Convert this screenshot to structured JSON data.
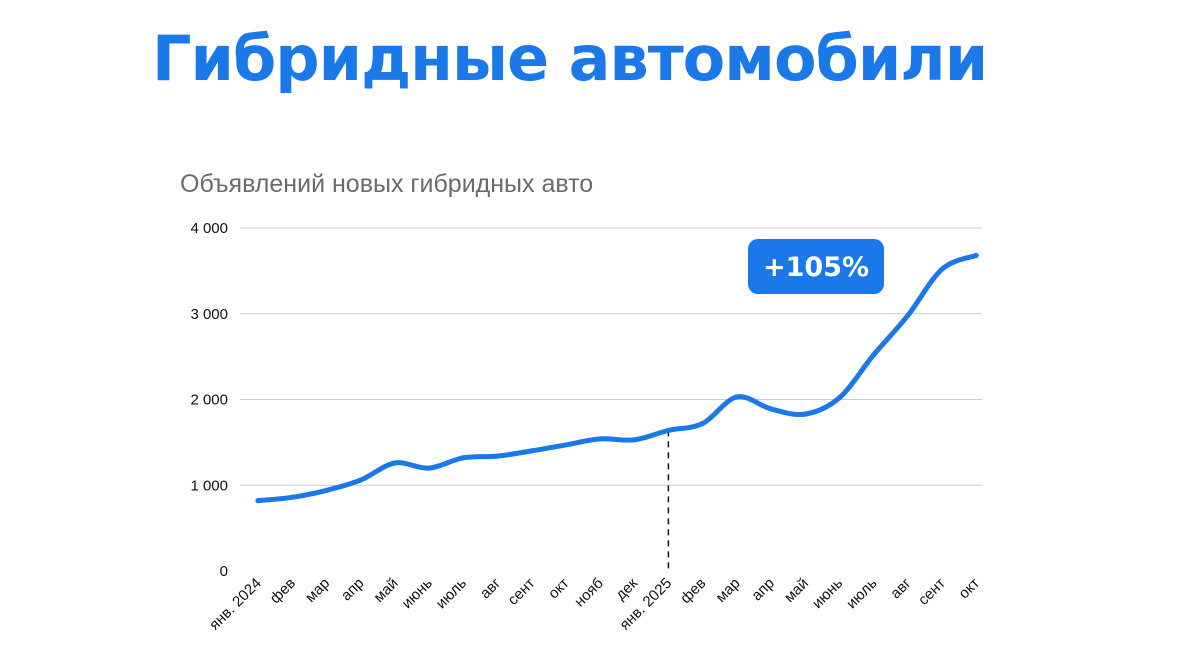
{
  "page_title": "Гибридные автомобили",
  "chart_data": {
    "type": "line",
    "title": "Объявлений новых гибридных авто",
    "xlabel": "",
    "ylabel": "",
    "categories": [
      "янв. 2024",
      "фев",
      "мар",
      "апр",
      "май",
      "июнь",
      "июль",
      "авг",
      "сент",
      "окт",
      "нояб",
      "дек",
      "янв. 2025",
      "фев",
      "мар",
      "апр",
      "май",
      "июнь",
      "июль",
      "авг",
      "сент",
      "окт"
    ],
    "series": [
      {
        "name": "",
        "values": [
          820,
          860,
          940,
          1060,
          1260,
          1200,
          1320,
          1340,
          1400,
          1470,
          1540,
          1530,
          1640,
          1720,
          2030,
          1890,
          1830,
          2020,
          2520,
          2980,
          3520,
          3680
        ]
      }
    ],
    "ylim": [
      0,
      4000
    ],
    "yticks": [
      0,
      1000,
      2000,
      3000,
      4000
    ],
    "ytick_labels": [
      "0",
      "1 000",
      "2 000",
      "3 000",
      "4 000"
    ],
    "grid": true,
    "legend": "none",
    "divider_category": "янв. 2025",
    "annotation": "+105%",
    "line_color": "#1a78e8",
    "badge_color": "#1a78e8",
    "grid_color": "#cccccc"
  }
}
